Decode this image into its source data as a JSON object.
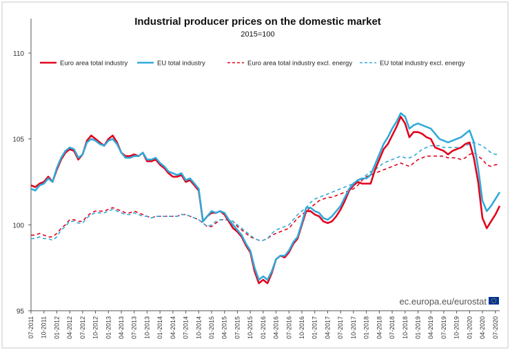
{
  "chart_data": {
    "type": "line",
    "title": "Industrial producer prices on the domestic market",
    "subtitle": "2015=100",
    "source": "ec.europa.eu/eurostat",
    "ylim": [
      95,
      110
    ],
    "yticks": [
      95,
      100,
      105,
      110
    ],
    "grid": false,
    "legend_position": "top",
    "x_tick_labels": [
      "07-2011",
      "10-2011",
      "01-2012",
      "04-2012",
      "07-2012",
      "10-2012",
      "01-2013",
      "04-2013",
      "07-2013",
      "10-2013",
      "01-2014",
      "04-2014",
      "07-2014",
      "10-2014",
      "01-2015",
      "04-2015",
      "07-2015",
      "10-2015",
      "01-2016",
      "04-2016",
      "07-2016",
      "10-2016",
      "01-2017",
      "04-2017",
      "07-2017",
      "10-2017",
      "01-2018",
      "04-2018",
      "07-2018",
      "10-2018",
      "01-2019",
      "04-2019",
      "07-2019",
      "10-2019",
      "01-2020",
      "04-2020",
      "07-2020"
    ],
    "series": [
      {
        "name": "Euro area total industry",
        "color": "#e3001b",
        "dash": false,
        "values": [
          102.3,
          102.2,
          102.4,
          102.5,
          102.8,
          102.5,
          103.2,
          103.8,
          104.2,
          104.4,
          104.3,
          103.8,
          104.1,
          104.9,
          105.2,
          105.0,
          104.8,
          104.6,
          105.0,
          105.2,
          104.8,
          104.2,
          104.0,
          104.0,
          104.1,
          104.0,
          104.2,
          103.7,
          103.7,
          103.8,
          103.5,
          103.3,
          103.0,
          102.8,
          102.8,
          102.9,
          102.5,
          102.6,
          102.3,
          102.0,
          100.2,
          100.5,
          100.7,
          100.7,
          100.8,
          100.6,
          100.2,
          99.8,
          99.6,
          99.3,
          98.8,
          98.4,
          97.3,
          96.6,
          96.8,
          96.6,
          97.2,
          98.0,
          98.2,
          98.1,
          98.4,
          98.9,
          99.2,
          100.0,
          100.8,
          100.8,
          100.6,
          100.5,
          100.2,
          100.1,
          100.2,
          100.5,
          100.9,
          101.4,
          102.0,
          102.3,
          102.5,
          102.4,
          102.4,
          102.4,
          103.2,
          103.8,
          104.4,
          104.7,
          105.2,
          105.7,
          106.3,
          105.9,
          105.1,
          105.4,
          105.4,
          105.3,
          105.1,
          105.0,
          104.5,
          104.4,
          104.3,
          104.1,
          104.3,
          104.4,
          104.5,
          104.7,
          104.8,
          103.9,
          102.5,
          100.4,
          99.8,
          100.2,
          100.6,
          101.1
        ]
      },
      {
        "name": "EU total industry",
        "color": "#31a9d8",
        "dash": false,
        "values": [
          102.1,
          102.0,
          102.3,
          102.4,
          102.7,
          102.5,
          103.3,
          103.9,
          104.3,
          104.5,
          104.4,
          103.9,
          104.1,
          104.8,
          105.0,
          104.9,
          104.7,
          104.6,
          104.9,
          105.0,
          104.7,
          104.2,
          103.9,
          103.9,
          104.0,
          104.0,
          104.2,
          103.8,
          103.8,
          103.9,
          103.6,
          103.4,
          103.1,
          103.0,
          102.9,
          103.0,
          102.6,
          102.7,
          102.4,
          102.1,
          100.2,
          100.5,
          100.8,
          100.7,
          100.8,
          100.7,
          100.3,
          100.0,
          99.7,
          99.4,
          98.9,
          98.5,
          97.5,
          96.8,
          97.0,
          96.8,
          97.3,
          98.0,
          98.2,
          98.2,
          98.5,
          99.0,
          99.3,
          100.1,
          101.0,
          101.0,
          100.8,
          100.7,
          100.4,
          100.3,
          100.5,
          100.8,
          101.1,
          101.6,
          102.1,
          102.4,
          102.6,
          102.7,
          102.7,
          102.9,
          103.5,
          104.1,
          104.7,
          105.1,
          105.6,
          106.0,
          106.5,
          106.3,
          105.6,
          105.8,
          105.9,
          105.8,
          105.7,
          105.6,
          105.3,
          105.0,
          104.9,
          104.8,
          104.9,
          105.0,
          105.1,
          105.3,
          105.5,
          104.8,
          103.3,
          101.4,
          100.8,
          101.1,
          101.5,
          101.9
        ]
      },
      {
        "name": "Euro area total industry excl. energy",
        "color": "#e3001b",
        "dash": true,
        "values": [
          99.4,
          99.4,
          99.5,
          99.4,
          99.3,
          99.3,
          99.5,
          99.8,
          100.0,
          100.3,
          100.3,
          100.2,
          100.2,
          100.5,
          100.7,
          100.8,
          100.8,
          100.8,
          100.9,
          101.0,
          100.9,
          100.8,
          100.7,
          100.7,
          100.8,
          100.7,
          100.6,
          100.5,
          100.4,
          100.5,
          100.5,
          100.5,
          100.5,
          100.5,
          100.5,
          100.6,
          100.6,
          100.5,
          100.4,
          100.3,
          100.1,
          99.9,
          99.9,
          100.1,
          100.3,
          100.3,
          100.3,
          100.2,
          99.9,
          99.7,
          99.5,
          99.3,
          99.2,
          99.1,
          99.1,
          99.2,
          99.4,
          99.5,
          99.6,
          99.7,
          99.8,
          100.1,
          100.4,
          100.6,
          100.8,
          101.0,
          101.2,
          101.4,
          101.5,
          101.6,
          101.6,
          101.7,
          101.8,
          101.9,
          102.0,
          102.1,
          102.3,
          102.6,
          102.8,
          102.9,
          103.0,
          103.1,
          103.2,
          103.3,
          103.4,
          103.5,
          103.6,
          103.5,
          103.4,
          103.6,
          103.8,
          103.9,
          104.0,
          104.0,
          104.0,
          104.0,
          104.0,
          103.9,
          103.9,
          103.9,
          103.8,
          103.9,
          104.1,
          104.2,
          104.0,
          103.8,
          103.5,
          103.4,
          103.5,
          103.5
        ]
      },
      {
        "name": "EU total industry excl. energy",
        "color": "#31a9d8",
        "dash": true,
        "values": [
          99.2,
          99.2,
          99.3,
          99.2,
          99.2,
          99.1,
          99.3,
          99.7,
          99.9,
          100.2,
          100.2,
          100.1,
          100.1,
          100.4,
          100.6,
          100.7,
          100.7,
          100.7,
          100.8,
          100.9,
          100.8,
          100.7,
          100.6,
          100.6,
          100.7,
          100.6,
          100.5,
          100.5,
          100.4,
          100.5,
          100.5,
          100.5,
          100.5,
          100.5,
          100.5,
          100.6,
          100.6,
          100.5,
          100.4,
          100.3,
          100.1,
          99.9,
          100.0,
          100.2,
          100.3,
          100.3,
          100.3,
          100.2,
          100.0,
          99.8,
          99.6,
          99.4,
          99.2,
          99.1,
          99.1,
          99.2,
          99.5,
          99.7,
          99.8,
          99.9,
          100.0,
          100.3,
          100.6,
          100.8,
          101.0,
          101.3,
          101.5,
          101.6,
          101.7,
          101.8,
          101.9,
          102.0,
          102.1,
          102.2,
          102.3,
          102.4,
          102.5,
          102.7,
          102.9,
          103.1,
          103.2,
          103.4,
          103.6,
          103.7,
          103.8,
          103.9,
          104.0,
          103.9,
          103.9,
          104.0,
          104.2,
          104.4,
          104.5,
          104.6,
          104.6,
          104.6,
          104.5,
          104.5,
          104.5,
          104.5,
          104.5,
          104.6,
          104.7,
          104.8,
          104.7,
          104.6,
          104.4,
          104.2,
          104.1,
          104.1
        ]
      }
    ]
  }
}
